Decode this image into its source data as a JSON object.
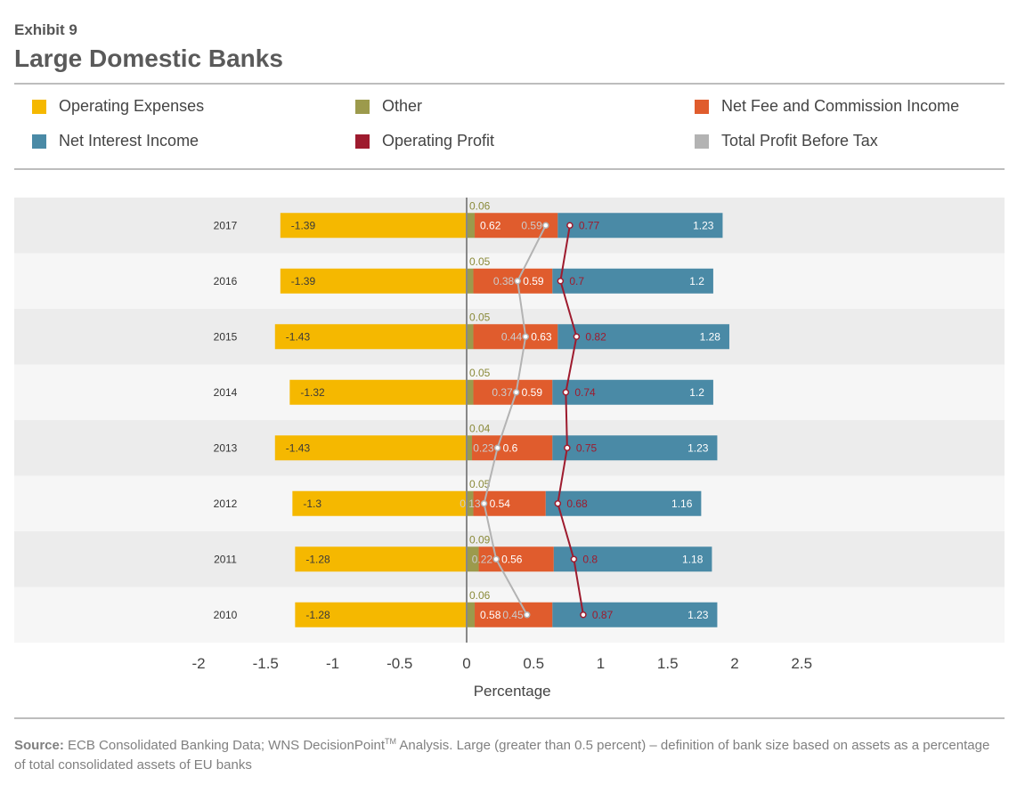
{
  "header": {
    "exhibit": "Exhibit 9",
    "title": "Large Domestic Banks"
  },
  "legend": [
    {
      "label": "Operating Expenses",
      "color": "#f5b800"
    },
    {
      "label": "Other",
      "color": "#9c9a4c"
    },
    {
      "label": "Net Fee and Commission Income",
      "color": "#e05c2d"
    },
    {
      "label": "Net Interest Income",
      "color": "#4a8aa6"
    },
    {
      "label": "Operating Profit",
      "color": "#9e1b2e"
    },
    {
      "label": "Total Profit Before Tax",
      "color": "#b3b3b3"
    }
  ],
  "chart_data": {
    "type": "bar",
    "orientation": "horizontal",
    "stacked": true,
    "categories": [
      "2017",
      "2016",
      "2015",
      "2014",
      "2013",
      "2012",
      "2011",
      "2010"
    ],
    "series": [
      {
        "name": "Operating Expenses",
        "values": [
          -1.39,
          -1.39,
          -1.43,
          -1.32,
          -1.43,
          -1.3,
          -1.28,
          -1.28
        ]
      },
      {
        "name": "Other",
        "values": [
          0.06,
          0.05,
          0.05,
          0.05,
          0.04,
          0.05,
          0.09,
          0.06
        ]
      },
      {
        "name": "Net Fee and Commission Income",
        "values": [
          0.62,
          0.59,
          0.63,
          0.59,
          0.6,
          0.54,
          0.56,
          0.58
        ]
      },
      {
        "name": "Net Interest Income",
        "values": [
          1.23,
          1.2,
          1.28,
          1.2,
          1.23,
          1.16,
          1.18,
          1.23
        ]
      }
    ],
    "lines": [
      {
        "name": "Total Profit Before Tax",
        "values": [
          0.59,
          0.38,
          0.44,
          0.37,
          0.23,
          0.13,
          0.22,
          0.45
        ]
      },
      {
        "name": "Operating Profit",
        "values": [
          0.77,
          0.7,
          0.82,
          0.74,
          0.75,
          0.68,
          0.8,
          0.87
        ]
      }
    ],
    "xlabel": "Percentage",
    "xlim": [
      -2,
      2.5
    ],
    "xticks": [
      "-2",
      "-1.5",
      "-1",
      "-0.5",
      "0",
      "0.5",
      "1",
      "1.5",
      "2",
      "2.5"
    ],
    "legend_position": "top"
  },
  "footer": {
    "source_label": "Source:",
    "source_text": "ECB Consolidated Banking Data; WNS DecisionPoint",
    "tm": "TM",
    "source_rest": " Analysis. Large (greater than 0.5 percent) – definition of bank size based on assets as a percentage of total consolidated assets of EU banks"
  }
}
